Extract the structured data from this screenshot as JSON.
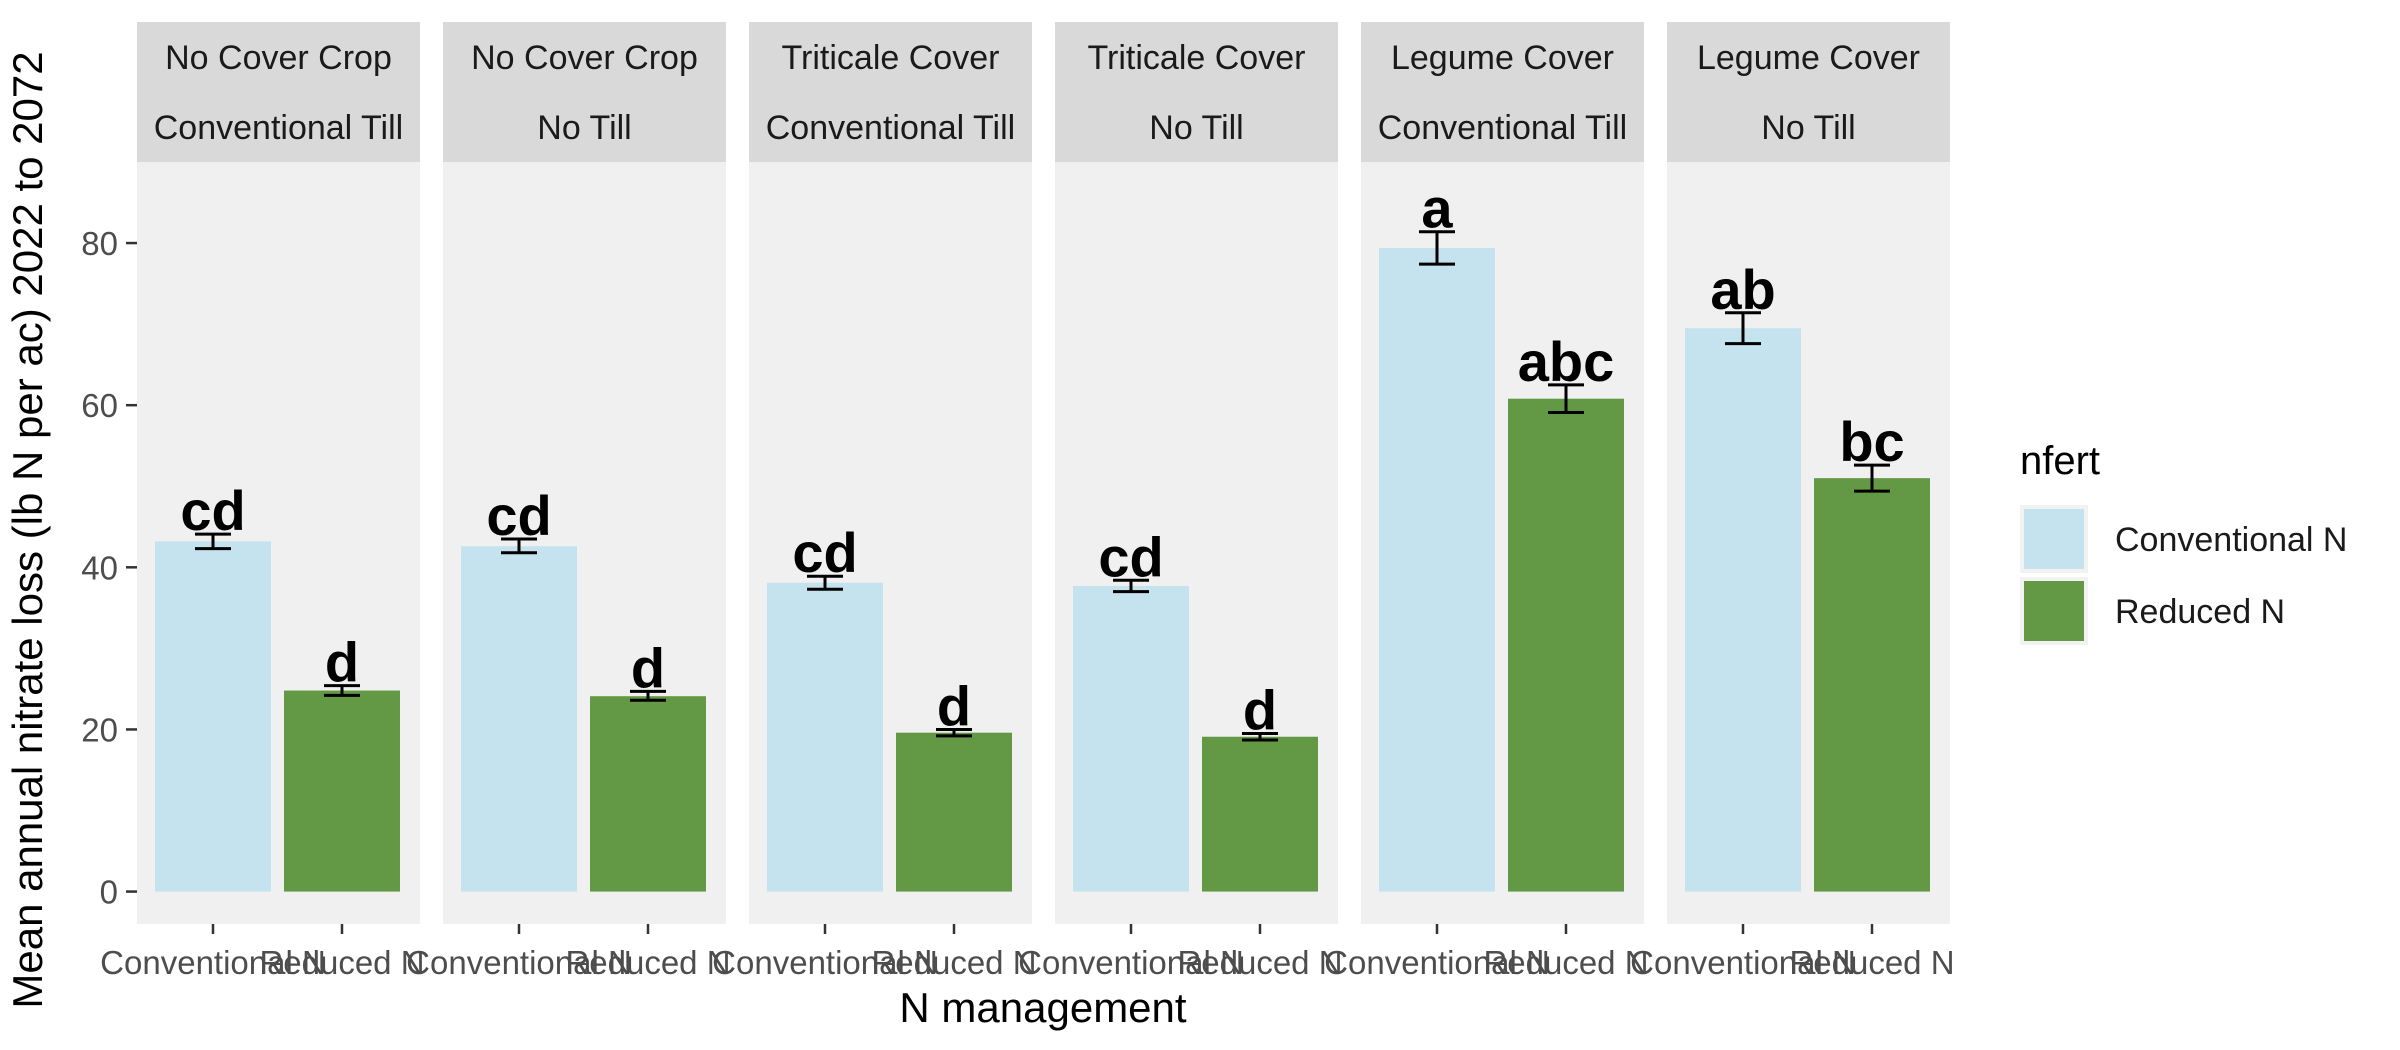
{
  "chart_data": {
    "type": "bar",
    "xlabel": "N management",
    "ylabel": "Mean annual nitrate loss (lb N per ac) 2022 to 2072",
    "ylim": [
      -4,
      90
    ],
    "y_ticks": [
      0,
      20,
      40,
      60,
      80
    ],
    "grid": false,
    "categories": [
      "Conventional N",
      "Reduced N"
    ],
    "legend": {
      "title": "nfert",
      "position": "right",
      "entries": [
        {
          "label": "Conventional N",
          "color": "#c4e3ef"
        },
        {
          "label": "Reduced N",
          "color": "#639845"
        }
      ]
    },
    "panels": [
      {
        "strip_top": "No Cover Crop",
        "strip_bottom": "Conventional Till",
        "values": [
          43.2,
          24.8
        ],
        "error_low": [
          42.3,
          24.2
        ],
        "error_high": [
          44.1,
          25.4
        ],
        "letters": [
          "cd",
          "d"
        ]
      },
      {
        "strip_top": "No Cover Crop",
        "strip_bottom": "No Till",
        "values": [
          42.6,
          24.1
        ],
        "error_low": [
          41.8,
          23.6
        ],
        "error_high": [
          43.5,
          24.7
        ],
        "letters": [
          "cd",
          "d"
        ]
      },
      {
        "strip_top": "Triticale Cover",
        "strip_bottom": "Conventional Till",
        "values": [
          38.1,
          19.6
        ],
        "error_low": [
          37.3,
          19.2
        ],
        "error_high": [
          38.9,
          20.0
        ],
        "letters": [
          "cd",
          "d"
        ]
      },
      {
        "strip_top": "Triticale Cover",
        "strip_bottom": "No Till",
        "values": [
          37.7,
          19.1
        ],
        "error_low": [
          37.0,
          18.7
        ],
        "error_high": [
          38.4,
          19.5
        ],
        "letters": [
          "cd",
          "d"
        ]
      },
      {
        "strip_top": "Legume Cover",
        "strip_bottom": "Conventional Till",
        "values": [
          79.4,
          60.8
        ],
        "error_low": [
          77.4,
          59.1
        ],
        "error_high": [
          81.4,
          62.5
        ],
        "letters": [
          "a",
          "abc"
        ]
      },
      {
        "strip_top": "Legume Cover",
        "strip_bottom": "No Till",
        "values": [
          69.5,
          51.0
        ],
        "error_low": [
          67.6,
          49.4
        ],
        "error_high": [
          71.4,
          52.6
        ],
        "letters": [
          "ab",
          "bc"
        ]
      }
    ]
  }
}
